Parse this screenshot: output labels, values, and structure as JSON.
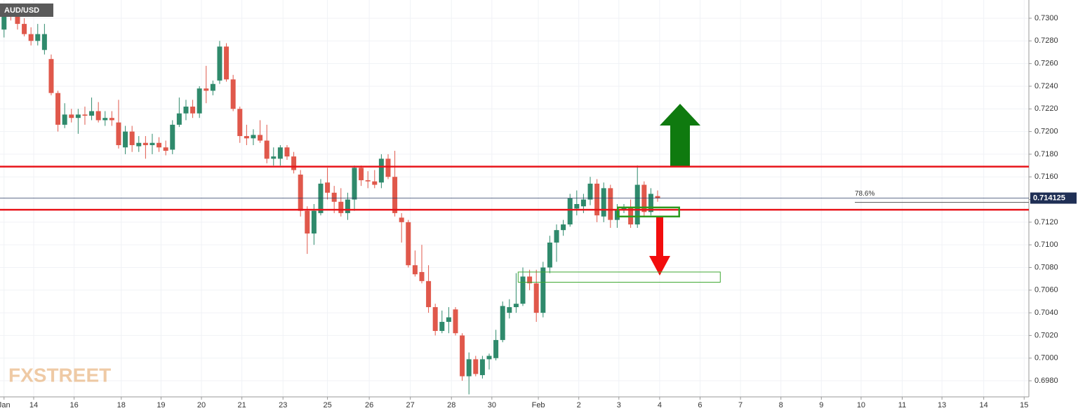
{
  "chart_data": {
    "type": "candlestick",
    "title": "AUD/USD",
    "watermark": "FXSTREET",
    "up_color": "#2f8a6c",
    "down_color": "#e0584b",
    "grid": true,
    "xlim": [
      -0.6,
      152.1
    ],
    "ylim": [
      0.69658,
      0.73161
    ],
    "yticks": [
      {
        "value": 0.698,
        "label": "0.6980"
      },
      {
        "value": 0.7,
        "label": "0.7000"
      },
      {
        "value": 0.702,
        "label": "0.7020"
      },
      {
        "value": 0.704,
        "label": "0.7040"
      },
      {
        "value": 0.706,
        "label": "0.7060"
      },
      {
        "value": 0.708,
        "label": "0.7080"
      },
      {
        "value": 0.71,
        "label": "0.7100"
      },
      {
        "value": 0.712,
        "label": "0.7120"
      },
      {
        "value": 0.714,
        "label": "0.7140"
      },
      {
        "value": 0.716,
        "label": "0.7160"
      },
      {
        "value": 0.718,
        "label": "0.7180"
      },
      {
        "value": 0.72,
        "label": "0.7200"
      },
      {
        "value": 0.722,
        "label": "0.7220"
      },
      {
        "value": 0.724,
        "label": "0.7240"
      },
      {
        "value": 0.726,
        "label": "0.7260"
      },
      {
        "value": 0.728,
        "label": "0.7280"
      },
      {
        "value": 0.73,
        "label": "0.7300"
      }
    ],
    "xticks": [
      {
        "value": 0,
        "label": "Jan"
      },
      {
        "value": 4.4,
        "label": "14"
      },
      {
        "value": 10.4,
        "label": "16"
      },
      {
        "value": 17.4,
        "label": "18"
      },
      {
        "value": 23.3,
        "label": "19"
      },
      {
        "value": 29.3,
        "label": "20"
      },
      {
        "value": 35.3,
        "label": "21"
      },
      {
        "value": 41.4,
        "label": "23"
      },
      {
        "value": 48,
        "label": "25"
      },
      {
        "value": 54.2,
        "label": "26"
      },
      {
        "value": 60.3,
        "label": "27"
      },
      {
        "value": 66.4,
        "label": "28"
      },
      {
        "value": 72.4,
        "label": "30"
      },
      {
        "value": 79.3,
        "label": "Feb"
      },
      {
        "value": 85.3,
        "label": "2"
      },
      {
        "value": 91.25,
        "label": "3"
      },
      {
        "value": 97.3,
        "label": "4"
      },
      {
        "value": 103.3,
        "label": "6"
      },
      {
        "value": 109.3,
        "label": "7"
      },
      {
        "value": 115.3,
        "label": "8"
      },
      {
        "value": 121.3,
        "label": "9"
      },
      {
        "value": 127.2,
        "label": "10"
      },
      {
        "value": 133.3,
        "label": "11"
      },
      {
        "value": 139.2,
        "label": "13"
      },
      {
        "value": 145.4,
        "label": "14"
      },
      {
        "value": 151.4,
        "label": "15"
      }
    ],
    "open": [
      0.729,
      0.7305,
      0.7302,
      0.7295,
      0.7286,
      0.728,
      0.7272,
      0.7264,
      0.7234,
      0.7206,
      0.7215,
      0.7212,
      0.7215,
      0.7214,
      0.7218,
      0.721,
      0.7212,
      0.7208,
      0.7186,
      0.72,
      0.7187,
      0.719,
      0.7188,
      0.719,
      0.7186,
      0.7184,
      0.7206,
      0.7216,
      0.7222,
      0.7216,
      0.7238,
      0.7236,
      0.7245,
      0.7275,
      0.7246,
      0.722,
      0.7196,
      0.7194,
      0.7197,
      0.7192,
      0.7176,
      0.7176,
      0.7186,
      0.7178,
      0.7162,
      0.713,
      0.711,
      0.7128,
      0.7155,
      0.7146,
      0.7138,
      0.7128,
      0.714,
      0.7168,
      0.7157,
      0.7156,
      0.7155,
      0.7176,
      0.716,
      0.7124,
      0.712,
      0.7082,
      0.7076,
      0.7068,
      0.7045,
      0.7024,
      0.7032,
      0.7043,
      0.702,
      0.6984,
      0.6999,
      0.6985,
      0.6999,
      0.7,
      0.7016,
      0.704,
      0.7045,
      0.7048,
      0.7072,
      0.7066,
      0.704,
      0.708,
      0.7102,
      0.7113,
      0.7118,
      0.7132,
      0.7134,
      0.714,
      0.7154,
      0.7125,
      0.715,
      0.7122,
      0.7131,
      0.7133,
      0.7118,
      0.7153,
      0.7129,
      0.7143
    ],
    "high": [
      0.7312,
      0.7312,
      0.7308,
      0.73,
      0.7292,
      0.7295,
      0.7295,
      0.7268,
      0.7236,
      0.7225,
      0.722,
      0.722,
      0.7222,
      0.723,
      0.7226,
      0.7218,
      0.7218,
      0.7228,
      0.7205,
      0.7205,
      0.7196,
      0.7196,
      0.7198,
      0.7195,
      0.7192,
      0.721,
      0.723,
      0.7228,
      0.7228,
      0.724,
      0.7258,
      0.7245,
      0.728,
      0.7278,
      0.725,
      0.7222,
      0.7206,
      0.7202,
      0.721,
      0.7206,
      0.7186,
      0.7188,
      0.7188,
      0.7182,
      0.7166,
      0.7134,
      0.7136,
      0.7158,
      0.7168,
      0.7152,
      0.715,
      0.7146,
      0.717,
      0.717,
      0.7165,
      0.7166,
      0.718,
      0.718,
      0.7183,
      0.7128,
      0.7122,
      0.7095,
      0.71,
      0.7082,
      0.7048,
      0.7042,
      0.7045,
      0.7045,
      0.7022,
      0.7005,
      0.7002,
      0.7002,
      0.7004,
      0.7025,
      0.705,
      0.7052,
      0.7075,
      0.708,
      0.7078,
      0.7078,
      0.7085,
      0.7108,
      0.7118,
      0.7122,
      0.7145,
      0.7148,
      0.7145,
      0.716,
      0.7158,
      0.7155,
      0.7153,
      0.7136,
      0.7136,
      0.714,
      0.717,
      0.7156,
      0.715,
      0.7148
    ],
    "low": [
      0.7283,
      0.7298,
      0.729,
      0.7284,
      0.7276,
      0.7276,
      0.7268,
      0.7232,
      0.72,
      0.7203,
      0.7208,
      0.7198,
      0.7206,
      0.721,
      0.7208,
      0.7205,
      0.7205,
      0.7185,
      0.718,
      0.7182,
      0.7182,
      0.7176,
      0.718,
      0.7182,
      0.7179,
      0.718,
      0.7204,
      0.721,
      0.7212,
      0.7212,
      0.7225,
      0.7232,
      0.7242,
      0.7244,
      0.7218,
      0.719,
      0.7188,
      0.7188,
      0.719,
      0.7172,
      0.717,
      0.717,
      0.7175,
      0.7163,
      0.7125,
      0.7092,
      0.71,
      0.7126,
      0.714,
      0.7128,
      0.7125,
      0.7122,
      0.713,
      0.7152,
      0.715,
      0.715,
      0.715,
      0.7158,
      0.7125,
      0.7102,
      0.708,
      0.7072,
      0.7066,
      0.704,
      0.702,
      0.7022,
      0.7022,
      0.702,
      0.698,
      0.6968,
      0.6984,
      0.6982,
      0.699,
      0.6998,
      0.7014,
      0.7035,
      0.704,
      0.7046,
      0.706,
      0.7032,
      0.7036,
      0.7075,
      0.7085,
      0.7108,
      0.7116,
      0.7126,
      0.7128,
      0.7135,
      0.712,
      0.712,
      0.7115,
      0.7115,
      0.7128,
      0.7115,
      0.7115,
      0.7125,
      0.7126,
      0.7138
    ],
    "close": [
      0.7305,
      0.7302,
      0.7295,
      0.7286,
      0.728,
      0.7286,
      0.7286,
      0.7234,
      0.7206,
      0.7215,
      0.7212,
      0.7215,
      0.7214,
      0.7218,
      0.721,
      0.7212,
      0.721,
      0.7188,
      0.72,
      0.7188,
      0.719,
      0.7188,
      0.719,
      0.7186,
      0.7183,
      0.7206,
      0.7216,
      0.7222,
      0.7216,
      0.7238,
      0.7236,
      0.7242,
      0.7275,
      0.7246,
      0.722,
      0.7196,
      0.7194,
      0.7197,
      0.7192,
      0.7176,
      0.7178,
      0.7186,
      0.7178,
      0.7166,
      0.713,
      0.711,
      0.713,
      0.7154,
      0.7146,
      0.7138,
      0.7128,
      0.714,
      0.7168,
      0.7157,
      0.7156,
      0.7153,
      0.7176,
      0.716,
      0.7128,
      0.712,
      0.7082,
      0.7074,
      0.7068,
      0.7045,
      0.7024,
      0.7032,
      0.7036,
      0.7022,
      0.6984,
      0.6999,
      0.6986,
      0.6999,
      0.7002,
      0.7016,
      0.7046,
      0.7045,
      0.7048,
      0.7072,
      0.7066,
      0.704,
      0.708,
      0.7102,
      0.7113,
      0.7118,
      0.7141,
      0.7136,
      0.714,
      0.7154,
      0.7126,
      0.715,
      0.7122,
      0.7131,
      0.7133,
      0.7118,
      0.7153,
      0.7129,
      0.7145,
      0.7141
    ],
    "levels": [
      {
        "value": 0.7169,
        "color": "#e8141a"
      },
      {
        "value": 0.7131,
        "color": "#e8141a"
      }
    ],
    "last_price": 0.714125,
    "fib": {
      "label": "78.6%",
      "value": 0.71375
    },
    "zones": [
      {
        "x": [
          91.1,
          100.2
        ],
        "y": [
          0.7125,
          0.7133
        ],
        "color": "#2e9a1e"
      },
      {
        "x": [
          76.3,
          106.3
        ],
        "y": [
          0.7067,
          0.7076
        ],
        "color": "#3fa833"
      }
    ]
  }
}
